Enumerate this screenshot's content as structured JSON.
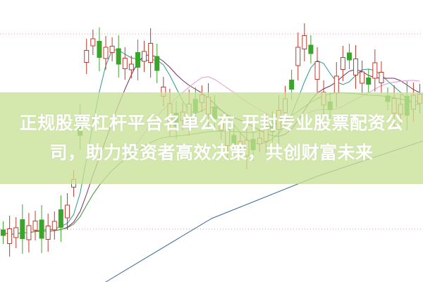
{
  "article": {
    "title": "正规股票杠杆平台名单公布 开封专业股票配资公司，助力投资者高效决策，共创财富未来"
  },
  "colors": {
    "banner": "#cfe39a",
    "title_text": "#ffffff",
    "up_candle": "#c0392b",
    "down_candle": "#3aa52a",
    "ma_pink": "#e89ad0",
    "ma_purple": "#7a2a6a",
    "ma_teal": "#2a9a8a",
    "ma_green": "#4a9a3a",
    "ma_blue": "#3a6a9a",
    "grid": "#c9a0a0"
  },
  "icons": {}
}
